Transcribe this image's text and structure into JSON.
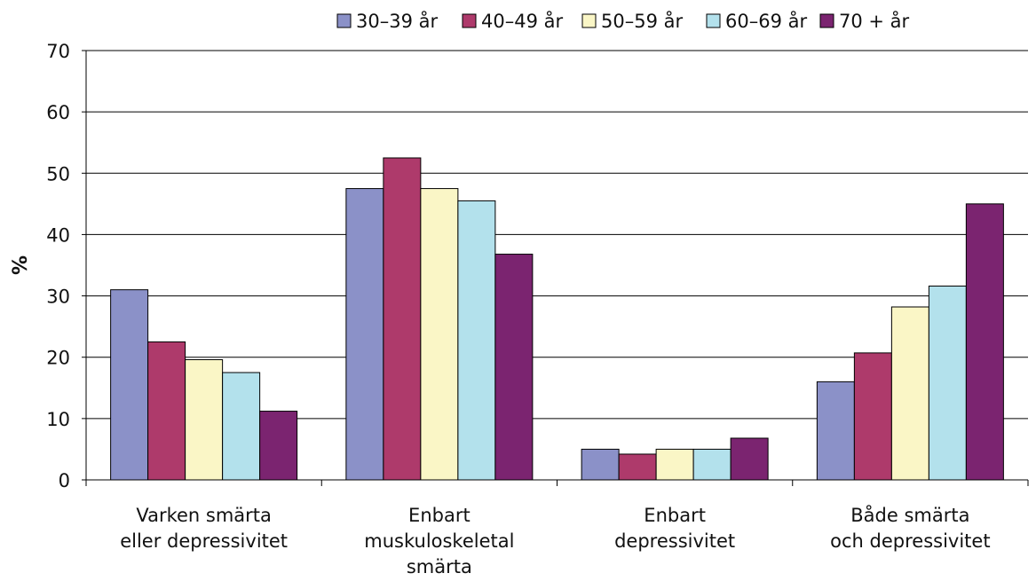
{
  "chart_data": {
    "type": "bar",
    "title": "",
    "xlabel": "",
    "ylabel": "%",
    "ylim": [
      0,
      70
    ],
    "yticks": [
      0,
      10,
      20,
      30,
      40,
      50,
      60,
      70
    ],
    "grid": true,
    "legend_position": "top",
    "categories": [
      [
        "Varken smärta",
        "eller depressivitet"
      ],
      [
        "Enbart",
        "muskuloskeletal",
        "smärta"
      ],
      [
        "Enbart",
        "depressivitet"
      ],
      [
        "Både smärta",
        "och depressivitet"
      ]
    ],
    "series": [
      {
        "name": "30–39 år",
        "color": "#8B91C8",
        "values": [
          31,
          47.5,
          5,
          16
        ]
      },
      {
        "name": "40–49 år",
        "color": "#AE3A6B",
        "values": [
          22.5,
          52.5,
          4.2,
          20.7
        ]
      },
      {
        "name": "50–59 år",
        "color": "#FAF6C6",
        "values": [
          19.6,
          47.5,
          5,
          28.2
        ]
      },
      {
        "name": "60–69 år",
        "color": "#B3E1EC",
        "values": [
          17.5,
          45.5,
          5,
          31.6
        ]
      },
      {
        "name": "70 + år",
        "color": "#7B2470",
        "values": [
          11.2,
          36.8,
          6.8,
          45
        ]
      }
    ]
  }
}
